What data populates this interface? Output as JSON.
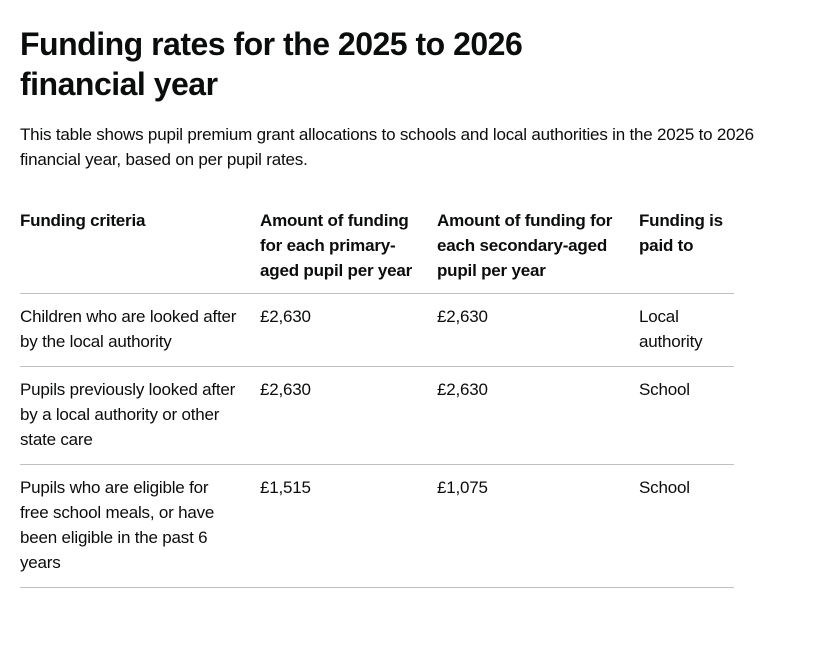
{
  "page": {
    "title": "Funding rates for the 2025 to 2026 financial year",
    "intro": "This table shows pupil premium grant allocations to schools and local authorities in the 2025 to 2026 financial year, based on per pupil rates."
  },
  "table": {
    "headers": [
      "Funding criteria",
      "Amount of funding for each primary-aged pupil per year",
      "Amount of funding for each secondary-aged pupil per year",
      "Funding is paid to"
    ],
    "rows": [
      {
        "criteria": "Children who are looked after by the local authority",
        "primary_amount": "£2,630",
        "secondary_amount": "£2,630",
        "paid_to": "Local authority"
      },
      {
        "criteria": "Pupils previously looked after by a local authority or other state care",
        "primary_amount": "£2,630",
        "secondary_amount": "£2,630",
        "paid_to": "School"
      },
      {
        "criteria": "Pupils who are eligible for free school meals, or have been eligible in the past 6 years",
        "primary_amount": "£1,515",
        "secondary_amount": "£1,075",
        "paid_to": "School"
      }
    ]
  },
  "colors": {
    "text": "#0b0c0c",
    "table_border": "#bfc1c3",
    "background": "#ffffff"
  }
}
